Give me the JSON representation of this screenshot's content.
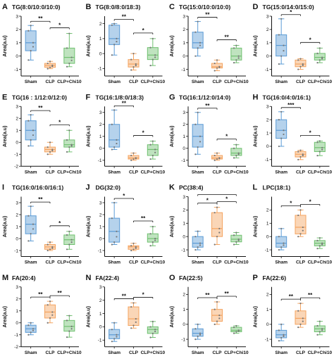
{
  "colors": {
    "Sham": "#5b9bd5",
    "CLP": "#f4a460",
    "CLP+Chi10": "#70c070"
  },
  "categories": [
    "Sham",
    "CLP",
    "CLP+Chi10"
  ],
  "ylabel": "Area(a.u)",
  "chart_data": [
    {
      "label": "A",
      "title": "TG(8:0/10:0/10:0)",
      "type": "box",
      "ylabel": "Area(a.u)",
      "ylim": [
        -1.5,
        3
      ],
      "yticks": [
        -1,
        0,
        1,
        2,
        3
      ],
      "categories": [
        "Sham",
        "CLP",
        "CLP+Chi10"
      ],
      "boxes": [
        {
          "min": -0.3,
          "q1": 0.4,
          "median": 1.0,
          "q3": 1.9,
          "max": 2.3
        },
        {
          "min": -0.95,
          "q1": -0.85,
          "median": -0.7,
          "q3": -0.55,
          "max": -0.4
        },
        {
          "min": -0.8,
          "q1": -0.55,
          "median": -0.1,
          "q3": 0.6,
          "max": 1.7
        }
      ],
      "sig": [
        {
          "from": 0,
          "to": 1,
          "label": "**"
        },
        {
          "from": 1,
          "to": 2,
          "label": "*"
        }
      ]
    },
    {
      "label": "B",
      "title": "TG(8:0/8:0/18:3)",
      "type": "box",
      "ylabel": "Area(a.u)",
      "ylim": [
        -1.5,
        2.5
      ],
      "yticks": [
        -1,
        0,
        1,
        2
      ],
      "categories": [
        "Sham",
        "CLP",
        "CLP+Chi10"
      ],
      "boxes": [
        {
          "min": -0.1,
          "q1": 0.6,
          "median": 1.0,
          "q3": 1.9,
          "max": 2.0
        },
        {
          "min": -1.1,
          "q1": -0.9,
          "median": -0.7,
          "q3": -0.4,
          "max": 0.0
        },
        {
          "min": -0.8,
          "q1": -0.4,
          "median": -0.1,
          "q3": 0.4,
          "max": 1.0
        }
      ],
      "sig": [
        {
          "from": 0,
          "to": 1,
          "label": "**"
        },
        {
          "from": 1,
          "to": 2,
          "label": "*"
        }
      ]
    },
    {
      "label": "C",
      "title": "TG(15:0/10:0/10:0)",
      "type": "box",
      "ylabel": "Area(a.u)",
      "ylim": [
        -1.5,
        3
      ],
      "yticks": [
        -1,
        0,
        1,
        2,
        3
      ],
      "categories": [
        "Sham",
        "CLP",
        "CLP+Chi10"
      ],
      "boxes": [
        {
          "min": 0.0,
          "q1": 0.6,
          "median": 1.0,
          "q3": 1.8,
          "max": 2.6
        },
        {
          "min": -1.1,
          "q1": -0.9,
          "median": -0.8,
          "q3": -0.55,
          "max": -0.3
        },
        {
          "min": -0.5,
          "q1": -0.3,
          "median": 0.0,
          "q3": 0.6,
          "max": 0.8
        }
      ],
      "sig": [
        {
          "from": 0,
          "to": 1,
          "label": "**"
        },
        {
          "from": 1,
          "to": 2,
          "label": "**"
        }
      ]
    },
    {
      "label": "D",
      "title": "TG(15:0/14:0/15:0)",
      "type": "box",
      "ylabel": "Area(a.u)",
      "ylim": [
        -1.5,
        3
      ],
      "yticks": [
        -1,
        0,
        1,
        2,
        3
      ],
      "categories": [
        "Sham",
        "CLP",
        "CLP+Chi10"
      ],
      "boxes": [
        {
          "min": -0.6,
          "q1": 0.0,
          "median": 0.8,
          "q3": 1.6,
          "max": 2.8
        },
        {
          "min": -1.0,
          "q1": -0.8,
          "median": -0.6,
          "q3": -0.3,
          "max": -0.2
        },
        {
          "min": -0.5,
          "q1": -0.3,
          "median": -0.1,
          "q3": 0.2,
          "max": 0.6
        }
      ],
      "sig": [
        {
          "from": 0,
          "to": 1,
          "label": "*"
        },
        {
          "from": 1,
          "to": 2,
          "label": "*"
        }
      ]
    },
    {
      "label": "E",
      "title": "TG(16 : 1/12:0/12:0)",
      "type": "box",
      "ylabel": "Area(a.u)",
      "ylim": [
        -2,
        3
      ],
      "yticks": [
        -2,
        -1,
        0,
        1,
        2,
        3
      ],
      "categories": [
        "Sham",
        "CLP",
        "CLP+Chi10"
      ],
      "boxes": [
        {
          "min": -0.3,
          "q1": 0.2,
          "median": 1.0,
          "q3": 1.8,
          "max": 2.3
        },
        {
          "min": -1.0,
          "q1": -0.8,
          "median": -0.6,
          "q3": -0.4,
          "max": 0.0
        },
        {
          "min": -0.8,
          "q1": -0.4,
          "median": -0.2,
          "q3": 0.2,
          "max": 1.0
        }
      ],
      "sig": [
        {
          "from": 0,
          "to": 1,
          "label": "**"
        },
        {
          "from": 1,
          "to": 2,
          "label": "*"
        }
      ]
    },
    {
      "label": "F",
      "title": "TG(16:1/8:0/18:3)",
      "type": "box",
      "ylabel": "Area(a.u)",
      "ylim": [
        -1.5,
        3.5
      ],
      "yticks": [
        -1,
        0,
        1,
        2,
        3
      ],
      "categories": [
        "Sham",
        "CLP",
        "CLP+Chi10"
      ],
      "boxes": [
        {
          "min": -0.1,
          "q1": 0.1,
          "median": 0.7,
          "q3": 2.0,
          "max": 3.2
        },
        {
          "min": -1.0,
          "q1": -0.9,
          "median": -0.8,
          "q3": -0.6,
          "max": -0.4
        },
        {
          "min": -0.9,
          "q1": -0.6,
          "median": -0.1,
          "q3": 0.3,
          "max": 0.6
        }
      ],
      "sig": [
        {
          "from": 0,
          "to": 1,
          "label": "**"
        },
        {
          "from": 1,
          "to": 2,
          "label": "*"
        }
      ]
    },
    {
      "label": "G",
      "title": "TG(16:1/12:0/14:0)",
      "type": "box",
      "ylabel": "Area(a.u)",
      "ylim": [
        -1.5,
        3.5
      ],
      "yticks": [
        -1,
        0,
        1,
        2,
        3
      ],
      "categories": [
        "Sham",
        "CLP",
        "CLP+Chi10"
      ],
      "boxes": [
        {
          "min": -0.5,
          "q1": 0.1,
          "median": 1.0,
          "q3": 2.0,
          "max": 3.0
        },
        {
          "min": -1.0,
          "q1": -0.9,
          "median": -0.8,
          "q3": -0.6,
          "max": -0.4
        },
        {
          "min": -0.8,
          "q1": -0.6,
          "median": -0.4,
          "q3": 0.0,
          "max": 0.3
        }
      ],
      "sig": [
        {
          "from": 0,
          "to": 1,
          "label": "**"
        },
        {
          "from": 1,
          "to": 2,
          "label": "*"
        }
      ]
    },
    {
      "label": "H",
      "title": "TG(16:0/4:0/16:1)",
      "type": "box",
      "ylabel": "Area(a.u)",
      "ylim": [
        -1.5,
        3
      ],
      "yticks": [
        -1,
        0,
        1,
        2,
        3
      ],
      "categories": [
        "Sham",
        "CLP",
        "CLP+Chi10"
      ],
      "boxes": [
        {
          "min": 0.0,
          "q1": 0.6,
          "median": 1.2,
          "q3": 2.0,
          "max": 2.6
        },
        {
          "min": -1.0,
          "q1": -0.8,
          "median": -0.6,
          "q3": -0.4,
          "max": -0.3
        },
        {
          "min": -0.7,
          "q1": -0.4,
          "median": -0.1,
          "q3": 0.3,
          "max": 0.4
        }
      ],
      "sig": [
        {
          "from": 0,
          "to": 1,
          "label": "***"
        },
        {
          "from": 1,
          "to": 2,
          "label": "*"
        }
      ]
    },
    {
      "label": "I",
      "title": "TG(16:0/16:0/16:1)",
      "type": "box",
      "ylabel": "Area(a.u)",
      "ylim": [
        -1.5,
        3.5
      ],
      "yticks": [
        -1,
        0,
        1,
        2,
        3
      ],
      "categories": [
        "Sham",
        "CLP",
        "CLP+Chi10"
      ],
      "boxes": [
        {
          "min": -0.2,
          "q1": 0.4,
          "median": 1.2,
          "q3": 1.9,
          "max": 2.7
        },
        {
          "min": -1.0,
          "q1": -0.9,
          "median": -0.7,
          "q3": -0.5,
          "max": -0.3
        },
        {
          "min": -0.9,
          "q1": -0.5,
          "median": -0.1,
          "q3": 0.3,
          "max": 0.6
        }
      ],
      "sig": [
        {
          "from": 0,
          "to": 1,
          "label": "**"
        },
        {
          "from": 1,
          "to": 2,
          "label": "*"
        }
      ]
    },
    {
      "label": "J",
      "title": "DG(32:0)",
      "type": "box",
      "ylabel": "Area(a.u)",
      "ylim": [
        -1.5,
        3.5
      ],
      "yticks": [
        -1,
        0,
        1,
        2,
        3
      ],
      "categories": [
        "Sham",
        "CLP",
        "CLP+Chi10"
      ],
      "boxes": [
        {
          "min": -0.5,
          "q1": -0.3,
          "median": 0.6,
          "q3": 1.7,
          "max": 3.0
        },
        {
          "min": -1.0,
          "q1": -0.9,
          "median": -0.7,
          "q3": -0.6,
          "max": -0.4
        },
        {
          "min": -0.6,
          "q1": -0.3,
          "median": 0.0,
          "q3": 0.4,
          "max": 1.0
        }
      ],
      "sig": [
        {
          "from": 0,
          "to": 1,
          "label": "*"
        },
        {
          "from": 1,
          "to": 2,
          "label": "**"
        }
      ]
    },
    {
      "label": "K",
      "title": "PC(38:4)",
      "type": "box",
      "ylabel": "Area(a.u)",
      "ylim": [
        -1.5,
        3
      ],
      "yticks": [
        -1,
        0,
        1,
        2,
        3
      ],
      "categories": [
        "Sham",
        "CLP",
        "CLP+Chi10"
      ],
      "boxes": [
        {
          "min": -1.0,
          "q1": -0.8,
          "median": -0.5,
          "q3": 0.0,
          "max": 0.4
        },
        {
          "min": -0.6,
          "q1": 0.0,
          "median": 0.6,
          "q3": 1.8,
          "max": 2.2
        },
        {
          "min": -0.6,
          "q1": -0.4,
          "median": -0.2,
          "q3": 0.1,
          "max": 0.3
        }
      ],
      "sig": [
        {
          "from": 0,
          "to": 1,
          "label": "*"
        },
        {
          "from": 1,
          "to": 2,
          "label": "*"
        },
        {
          "from": 0,
          "to": 2,
          "label": ""
        }
      ]
    },
    {
      "label": "L",
      "title": "LPC(18:1)",
      "type": "box",
      "ylabel": "Area(a.u)",
      "ylim": [
        -1.5,
        3
      ],
      "yticks": [
        -1,
        0,
        1,
        2
      ],
      "categories": [
        "Sham",
        "CLP",
        "CLP+Chi10"
      ],
      "boxes": [
        {
          "min": -1.0,
          "q1": -0.8,
          "median": -0.5,
          "q3": 0.0,
          "max": 0.6
        },
        {
          "min": 0.0,
          "q1": 0.2,
          "median": 0.7,
          "q3": 1.6,
          "max": 2.0
        },
        {
          "min": -0.9,
          "q1": -0.7,
          "median": -0.5,
          "q3": -0.3,
          "max": -0.1
        }
      ],
      "sig": [
        {
          "from": 0,
          "to": 1,
          "label": "*"
        },
        {
          "from": 1,
          "to": 2,
          "label": "*"
        }
      ]
    },
    {
      "label": "M",
      "title": "FA(20:4)",
      "type": "box",
      "ylabel": "Area(a.u)",
      "ylim": [
        -2,
        3
      ],
      "yticks": [
        -2,
        -1,
        0,
        1,
        2,
        3
      ],
      "categories": [
        "Sham",
        "CLP",
        "CLP+Chi10"
      ],
      "boxes": [
        {
          "min": -1.0,
          "q1": -0.8,
          "median": -0.5,
          "q3": -0.2,
          "max": 0.0
        },
        {
          "min": 0.0,
          "q1": 0.4,
          "median": 0.9,
          "q3": 1.5,
          "max": 1.8
        },
        {
          "min": -1.2,
          "q1": -0.7,
          "median": -0.3,
          "q3": 0.2,
          "max": 0.6
        }
      ],
      "sig": [
        {
          "from": 0,
          "to": 1,
          "label": "**"
        },
        {
          "from": 1,
          "to": 2,
          "label": "**"
        }
      ]
    },
    {
      "label": "N",
      "title": "FA(22:4)",
      "type": "box",
      "ylabel": "Area(a.u)",
      "ylim": [
        -1.5,
        3
      ],
      "yticks": [
        -1,
        0,
        1,
        2,
        3
      ],
      "categories": [
        "Sham",
        "CLP",
        "CLP+Chi10"
      ],
      "boxes": [
        {
          "min": -1.1,
          "q1": -0.9,
          "median": -0.6,
          "q3": -0.2,
          "max": 0.3
        },
        {
          "min": -0.1,
          "q1": 0.1,
          "median": 0.6,
          "q3": 1.5,
          "max": 1.8
        },
        {
          "min": -0.8,
          "q1": -0.5,
          "median": -0.2,
          "q3": 0.0,
          "max": 0.4
        }
      ],
      "sig": [
        {
          "from": 0,
          "to": 1,
          "label": "**"
        },
        {
          "from": 1,
          "to": 2,
          "label": "*"
        }
      ]
    },
    {
      "label": "O",
      "title": "FA(22:5)",
      "type": "box",
      "ylabel": "Area(a.u)",
      "ylim": [
        -1.5,
        2.5
      ],
      "yticks": [
        -1,
        0,
        1,
        2
      ],
      "categories": [
        "Sham",
        "CLP",
        "CLP+Chi10"
      ],
      "boxes": [
        {
          "min": -1.0,
          "q1": -0.8,
          "median": -0.6,
          "q3": -0.3,
          "max": 0.0
        },
        {
          "min": 0.0,
          "q1": 0.2,
          "median": 0.6,
          "q3": 1.0,
          "max": 1.5
        },
        {
          "min": -0.6,
          "q1": -0.5,
          "median": -0.4,
          "q3": -0.2,
          "max": -0.1
        }
      ],
      "sig": [
        {
          "from": 0,
          "to": 1,
          "label": "**"
        },
        {
          "from": 1,
          "to": 2,
          "label": "**"
        }
      ]
    },
    {
      "label": "P",
      "title": "FA(22:6)",
      "type": "box",
      "ylabel": "Area(a.u)",
      "ylim": [
        -1.5,
        2.5
      ],
      "yticks": [
        -1,
        0,
        1,
        2
      ],
      "categories": [
        "Sham",
        "CLP",
        "CLP+Chi10"
      ],
      "boxes": [
        {
          "min": -1.1,
          "q1": -0.9,
          "median": -0.7,
          "q3": -0.4,
          "max": 0.0
        },
        {
          "min": -0.2,
          "q1": 0.0,
          "median": 0.4,
          "q3": 0.9,
          "max": 1.4
        },
        {
          "min": -0.7,
          "q1": -0.5,
          "median": -0.3,
          "q3": -0.1,
          "max": 0.2
        }
      ],
      "sig": [
        {
          "from": 0,
          "to": 1,
          "label": "**"
        },
        {
          "from": 1,
          "to": 2,
          "label": "**"
        }
      ]
    }
  ]
}
